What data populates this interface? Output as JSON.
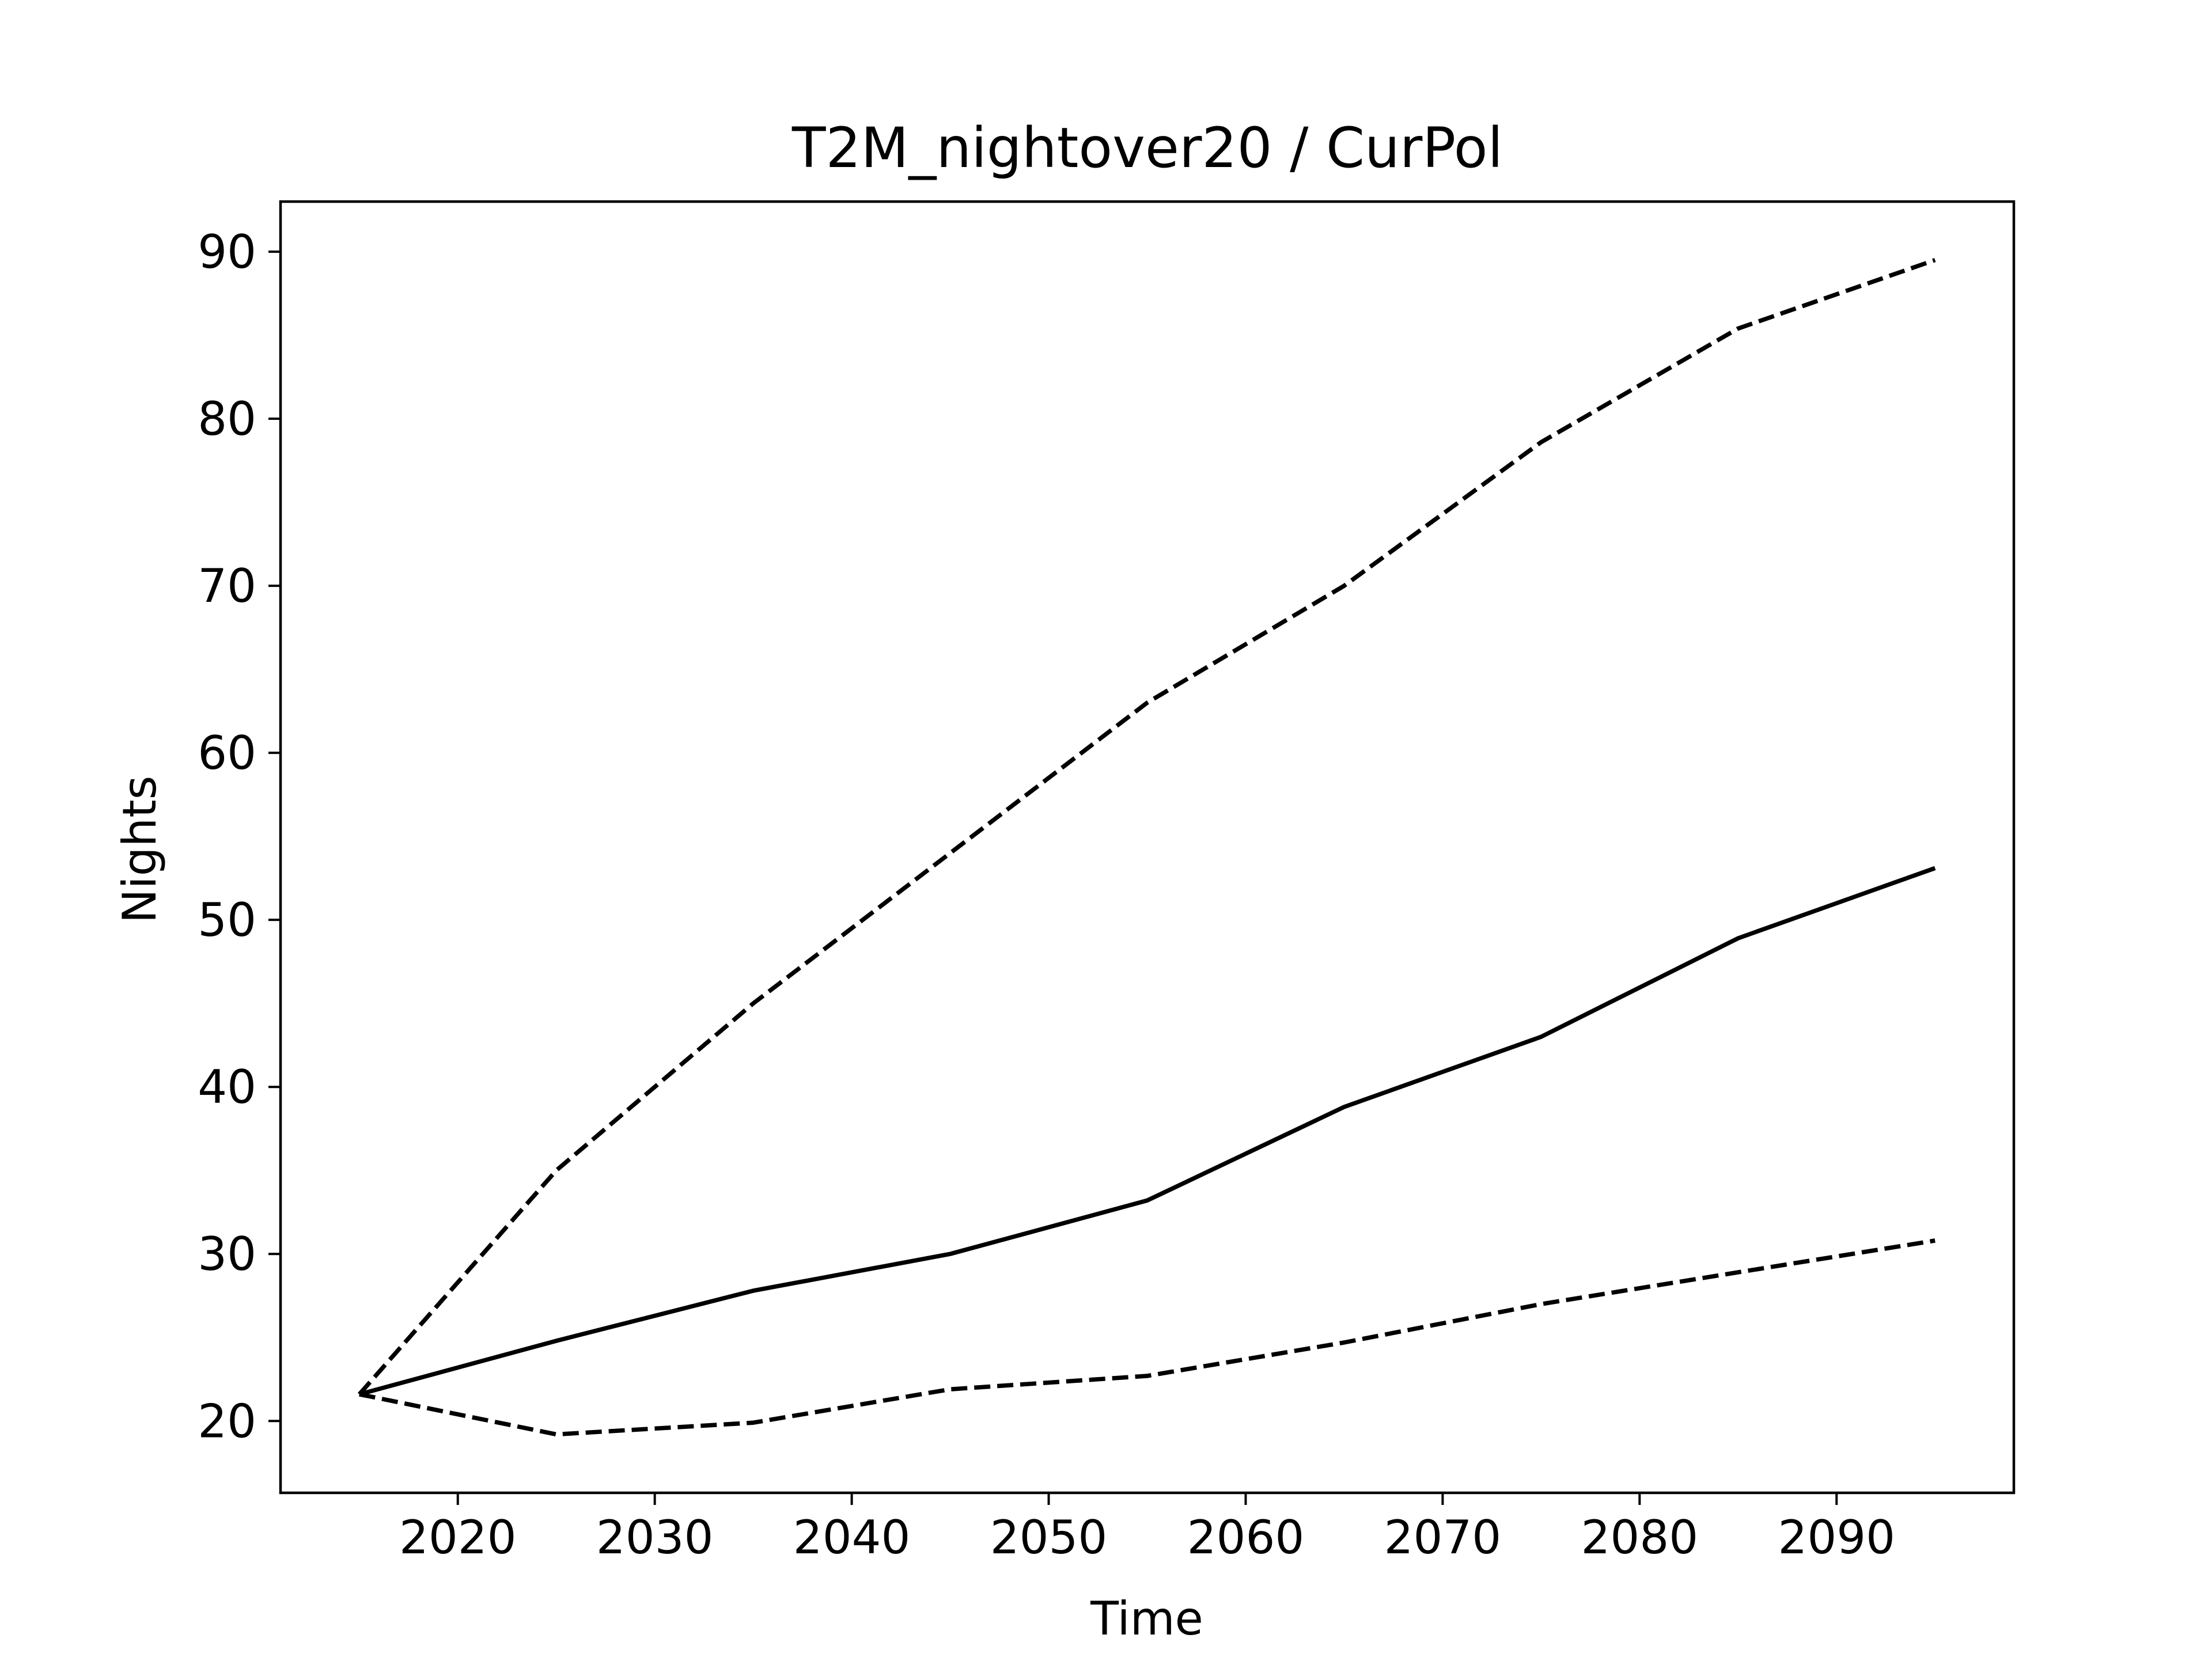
{
  "chart_data": {
    "type": "line",
    "title": "T2M_nightover20 / CurPol",
    "xlabel": "Time",
    "ylabel": "Nights",
    "xlim": [
      2011,
      2099
    ],
    "ylim": [
      15.7,
      93
    ],
    "xticks": [
      2020,
      2030,
      2040,
      2050,
      2060,
      2070,
      2080,
      2090
    ],
    "yticks": [
      20,
      30,
      40,
      50,
      60,
      70,
      80,
      90
    ],
    "grid": false,
    "legend": "none",
    "color": "#000000",
    "x": [
      2015,
      2025,
      2035,
      2045,
      2055,
      2065,
      2075,
      2085,
      2095
    ],
    "series": [
      {
        "style": "solid",
        "values": [
          21.6,
          24.8,
          27.8,
          30.0,
          33.2,
          38.8,
          43.0,
          48.9,
          53.1
        ]
      },
      {
        "style": "dashed",
        "values": [
          21.6,
          35.0,
          45.0,
          54.0,
          63.0,
          70.0,
          78.6,
          85.4,
          89.5
        ]
      },
      {
        "style": "dashed",
        "values": [
          21.6,
          19.2,
          19.9,
          21.9,
          22.7,
          24.7,
          27.0,
          28.9,
          30.8
        ]
      }
    ]
  }
}
